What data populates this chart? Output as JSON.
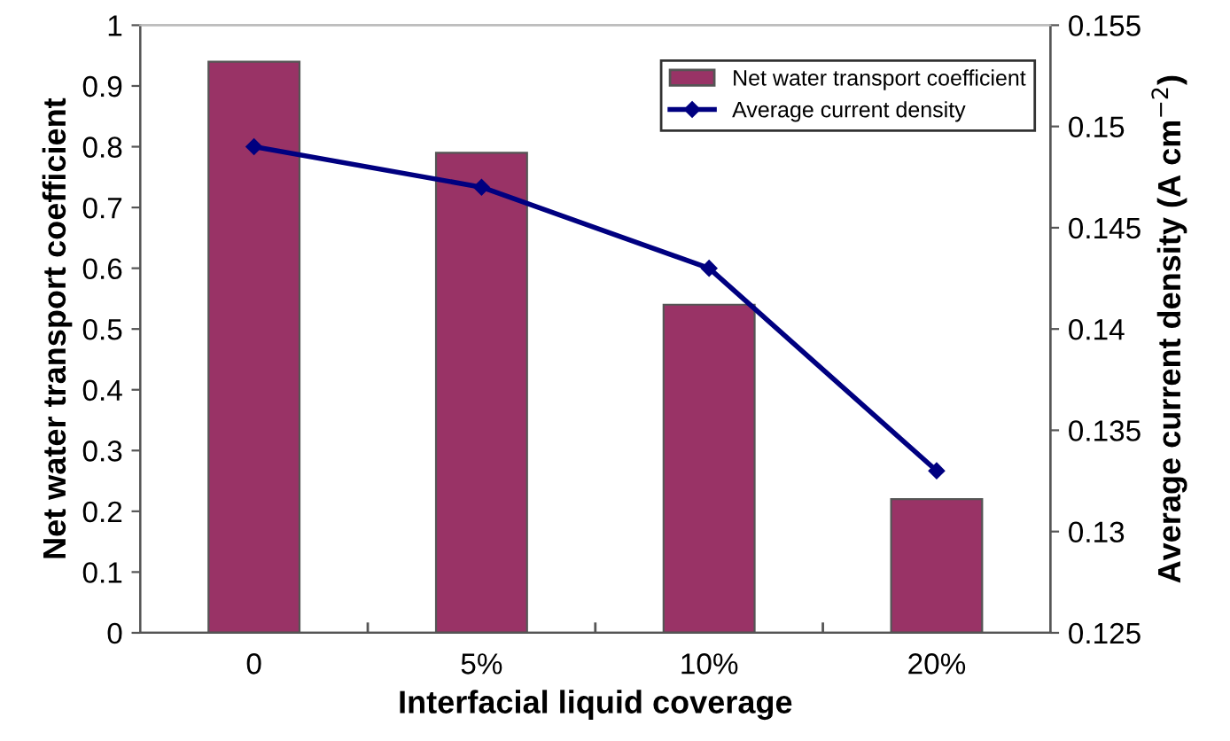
{
  "chart_data": {
    "type": "bar",
    "xlabel": "Interfacial liquid coverage",
    "ylabel": "Net water transport coefficient",
    "y2label": "Average current density (A cm$^{−2}$)",
    "categories": [
      "0",
      "5%",
      "10%",
      "20%"
    ],
    "series": [
      {
        "name": "Net water transport coefficient",
        "color": "#993366",
        "values": [
          0.94,
          0.79,
          0.54,
          0.22
        ]
      },
      {
        "name": "Average current density",
        "type": "line",
        "axis": "y2",
        "color": "#000080",
        "marker": "diamond",
        "values": [
          0.149,
          0.147,
          0.143,
          0.133
        ]
      }
    ],
    "ylim": [
      0,
      1
    ],
    "yticks": [
      0,
      0.1,
      0.2,
      0.3,
      0.4,
      0.5,
      0.6,
      0.7,
      0.8,
      0.9,
      1
    ],
    "y2lim": [
      0.125,
      0.155
    ],
    "y2ticks": [
      0.125,
      0.13,
      0.135,
      0.14,
      0.145,
      0.15,
      0.155
    ],
    "legend": "top right",
    "grid": false
  }
}
